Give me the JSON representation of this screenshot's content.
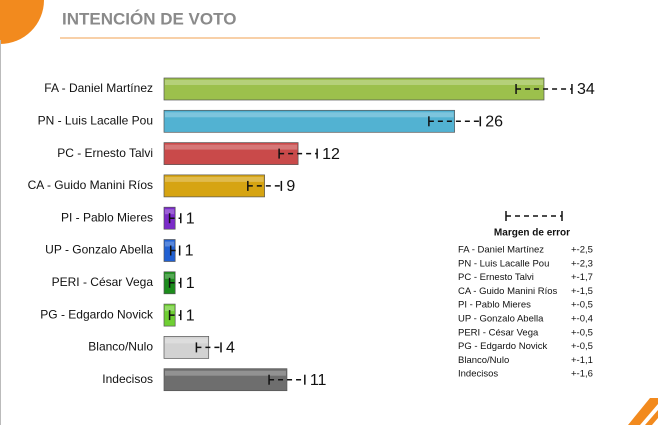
{
  "chart_data": {
    "type": "bar",
    "orientation": "horizontal",
    "title": "INTENCIÓN DE VOTO",
    "categories": [
      "FA - Daniel Martínez",
      "PN - Luis Lacalle Pou",
      "PC - Ernesto Talvi",
      "CA - Guido Manini Ríos",
      "PI - Pablo Mieres",
      "UP - Gonzalo Abella",
      "PERI - César Vega",
      "PG - Edgardo Novick",
      "Blanco/Nulo",
      "Indecisos"
    ],
    "values": [
      34,
      26,
      12,
      9,
      1,
      1,
      1,
      1,
      4,
      11
    ],
    "errors": [
      2.5,
      2.3,
      1.7,
      1.5,
      0.5,
      0.4,
      0.5,
      0.5,
      1.1,
      1.6
    ],
    "error_labels": [
      "+-2,5",
      "+-2,3",
      "+-1,7",
      "+-1,5",
      "+-0,5",
      "+-0,4",
      "+-0,5",
      "+-0,5",
      "+-1,1",
      "+-1,6"
    ],
    "colors": [
      "#9cc04c",
      "#52b2d2",
      "#c94a4a",
      "#d6a412",
      "#7b2bc9",
      "#2160d2",
      "#1c8c1c",
      "#6fcf33",
      "#d2d2d2",
      "#6e6e6e"
    ],
    "legend_title": "Margen de error"
  }
}
